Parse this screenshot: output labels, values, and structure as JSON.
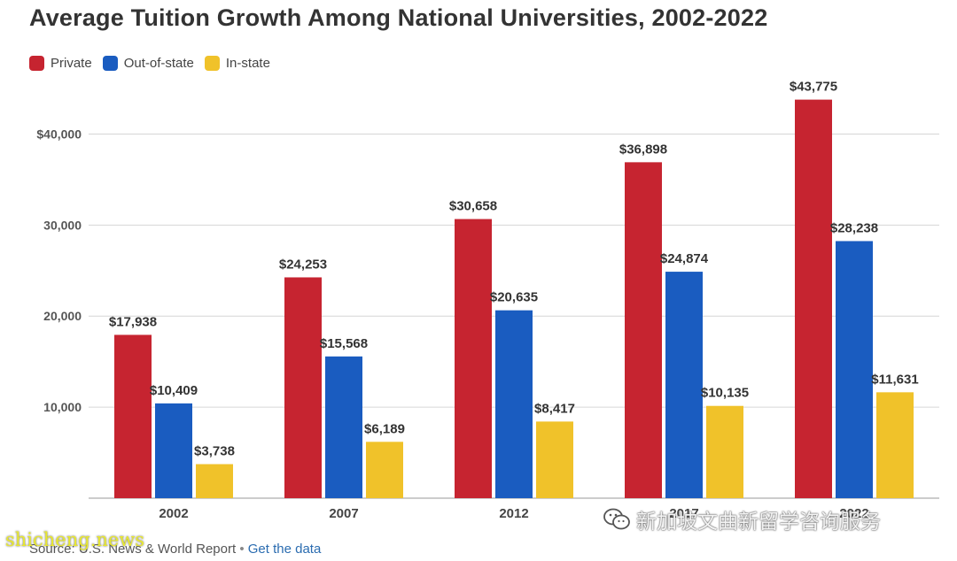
{
  "chart_data": {
    "type": "bar",
    "title": "Average Tuition Growth Among National Universities, 2002-2022",
    "categories": [
      "2002",
      "2007",
      "2012",
      "2017",
      "2022"
    ],
    "series": [
      {
        "name": "Private",
        "color": "#c62430",
        "values": [
          17938,
          24253,
          30658,
          36898,
          43775
        ]
      },
      {
        "name": "Out-of-state",
        "color": "#1a5cc0",
        "values": [
          10409,
          15568,
          20635,
          24874,
          28238
        ]
      },
      {
        "name": "In-state",
        "color": "#f0c22a",
        "values": [
          3738,
          6189,
          8417,
          10135,
          11631
        ]
      }
    ],
    "data_labels": [
      [
        "$17,938",
        "$24,253",
        "$30,658",
        "$36,898",
        "$43,775"
      ],
      [
        "$10,409",
        "$15,568",
        "$20,635",
        "$24,874",
        "$28,238"
      ],
      [
        "$3,738",
        "$6,189",
        "$8,417",
        "$10,135",
        "$11,631"
      ]
    ],
    "yticks": [
      10000,
      20000,
      30000,
      40000
    ],
    "ytick_labels": [
      "10,000",
      "20,000",
      "30,000",
      "$40,000"
    ],
    "ylim": [
      0,
      45000
    ],
    "grid": true,
    "legend_position": "top-left"
  },
  "footer": {
    "source": "Source: U.S. News & World Report",
    "separator": "•",
    "link": "Get the data"
  },
  "watermarks": {
    "right": "新加坡文曲新留学咨询服务",
    "left": "shicheng.news"
  }
}
